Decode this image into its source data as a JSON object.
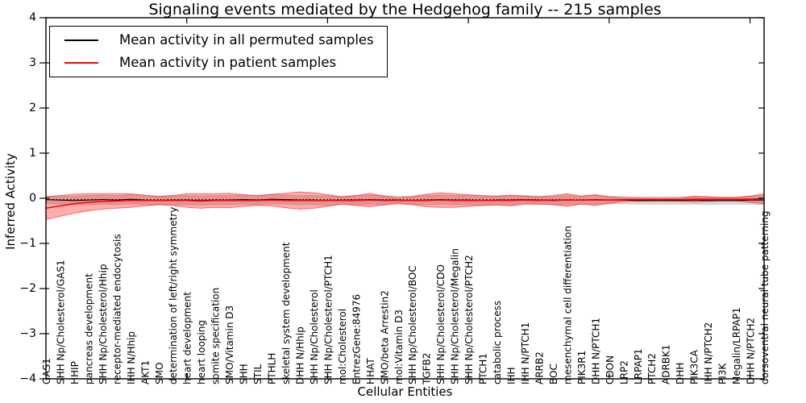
{
  "chart_data": {
    "type": "line",
    "title": "Signaling events mediated by the Hedgehog family -- 215 samples",
    "xlabel": "Cellular Entities",
    "ylabel": "Inferred Activity",
    "ylim": [
      -4,
      4
    ],
    "yticks": [
      -4,
      -3,
      -2,
      -1,
      0,
      1,
      2,
      3,
      4
    ],
    "xticks_major_index": [
      10,
      20,
      30,
      40,
      50
    ],
    "grid": false,
    "legend_position": "upper left",
    "zero_line": {
      "y": 0,
      "style": "dotted",
      "color": "#000000"
    },
    "categories": [
      "GAS1",
      "SHH Np/Cholesterol/GAS1",
      "HHIP",
      "pancreas development",
      "SHH Np/Cholesterol/Hhip",
      "receptor-mediated endocytosis",
      "IHH N/Hhip",
      "AKT1",
      "SMO",
      "determination of left/right symmetry",
      "heart development",
      "heart looping",
      "somite specification",
      "SMO/Vitamin D3",
      "SHH",
      "STIL",
      "PTHLH",
      "skeletal system development",
      "DHH N/Hhip",
      "SHH Np/Cholesterol",
      "SHH Np/Cholesterol/PTCH1",
      "mol:Cholesterol",
      "EntrezGene:84976",
      "HHAT",
      "SMO/beta Arrestin2",
      "mol:Vitamin D3",
      "SHH Np/Cholesterol/BOC",
      "TGFB2",
      "SHH Np/Cholesterol/CDO",
      "SHH Np/Cholesterol/Megalin",
      "SHH Np/Cholesterol/PTCH2",
      "PTCH1",
      "catabolic process",
      "IHH",
      "IHH N/PTCH1",
      "ARRB2",
      "BOC",
      "mesenchymal cell differentiation",
      "PIK3R1",
      "DHH N/PTCH1",
      "CDON",
      "LRP2",
      "LRPAP1",
      "PTCH2",
      "ADRBK1",
      "DHH",
      "PIK3CA",
      "IHH N/PTCH2",
      "PI3K",
      "Megalin/LRPAP1",
      "DHH N/PTCH2",
      "dorsoventral neural tube patterning"
    ],
    "series": [
      {
        "name": "Mean activity in all permuted samples",
        "color": "#000000",
        "band_color": "#aaaaaa",
        "values": [
          -0.03,
          -0.04,
          -0.05,
          -0.04,
          -0.03,
          -0.04,
          -0.02,
          -0.04,
          -0.05,
          -0.04,
          -0.04,
          -0.05,
          -0.04,
          -0.04,
          -0.03,
          -0.04,
          -0.02,
          -0.03,
          -0.04,
          -0.04,
          -0.05,
          -0.04,
          -0.04,
          -0.03,
          -0.04,
          -0.04,
          -0.05,
          -0.04,
          -0.03,
          -0.04,
          -0.04,
          -0.05,
          -0.04,
          -0.04,
          -0.03,
          -0.04,
          -0.05,
          -0.04,
          -0.04,
          -0.03,
          -0.04,
          -0.04,
          -0.05,
          -0.05,
          -0.05,
          -0.05,
          -0.04,
          -0.05,
          -0.05,
          -0.05,
          -0.04,
          -0.04
        ],
        "band_half_width": [
          0.08,
          0.09,
          0.09,
          0.1,
          0.1,
          0.1,
          0.1,
          0.1,
          0.1,
          0.1,
          0.1,
          0.1,
          0.1,
          0.1,
          0.1,
          0.1,
          0.1,
          0.1,
          0.1,
          0.1,
          0.1,
          0.09,
          0.1,
          0.1,
          0.1,
          0.09,
          0.09,
          0.1,
          0.1,
          0.1,
          0.1,
          0.1,
          0.09,
          0.1,
          0.09,
          0.09,
          0.09,
          0.1,
          0.09,
          0.1,
          0.09,
          0.08,
          0.08,
          0.08,
          0.08,
          0.08,
          0.09,
          0.09,
          0.08,
          0.08,
          0.09,
          0.1
        ]
      },
      {
        "name": "Mean activity in patient samples",
        "color": "#ff0000",
        "band_color": "#ff0000",
        "values": [
          -0.22,
          -0.17,
          -0.12,
          -0.09,
          -0.07,
          -0.06,
          -0.05,
          -0.05,
          -0.05,
          -0.05,
          -0.05,
          -0.06,
          -0.05,
          -0.05,
          -0.05,
          -0.05,
          -0.04,
          -0.05,
          -0.05,
          -0.05,
          -0.05,
          -0.05,
          -0.05,
          -0.04,
          -0.05,
          -0.05,
          -0.05,
          -0.05,
          -0.04,
          -0.05,
          -0.05,
          -0.05,
          -0.05,
          -0.05,
          -0.04,
          -0.05,
          -0.04,
          -0.04,
          -0.04,
          -0.04,
          -0.04,
          -0.03,
          -0.03,
          -0.03,
          -0.03,
          -0.03,
          -0.02,
          -0.02,
          -0.02,
          -0.02,
          -0.02,
          -0.01
        ],
        "band_half_width": [
          0.25,
          0.23,
          0.21,
          0.19,
          0.17,
          0.16,
          0.15,
          0.12,
          0.09,
          0.11,
          0.15,
          0.16,
          0.15,
          0.16,
          0.13,
          0.11,
          0.13,
          0.16,
          0.19,
          0.17,
          0.13,
          0.08,
          0.11,
          0.15,
          0.1,
          0.06,
          0.09,
          0.14,
          0.16,
          0.15,
          0.13,
          0.11,
          0.1,
          0.12,
          0.09,
          0.08,
          0.1,
          0.14,
          0.09,
          0.12,
          0.07,
          0.04,
          0.035,
          0.03,
          0.03,
          0.035,
          0.06,
          0.05,
          0.035,
          0.04,
          0.07,
          0.11
        ]
      }
    ]
  }
}
